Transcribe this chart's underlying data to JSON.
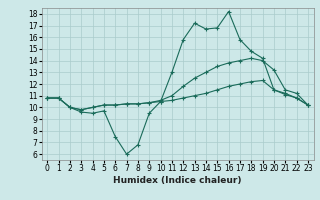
{
  "title": "",
  "xlabel": "Humidex (Indice chaleur)",
  "bg_color": "#cde8e8",
  "line_color": "#1a6b5a",
  "grid_color": "#aacccc",
  "xlim": [
    -0.5,
    23.5
  ],
  "ylim": [
    5.5,
    18.5
  ],
  "xticks": [
    0,
    1,
    2,
    3,
    4,
    5,
    6,
    7,
    8,
    9,
    10,
    11,
    12,
    13,
    14,
    15,
    16,
    17,
    18,
    19,
    20,
    21,
    22,
    23
  ],
  "yticks": [
    6,
    7,
    8,
    9,
    10,
    11,
    12,
    13,
    14,
    15,
    16,
    17,
    18
  ],
  "line1_x": [
    0,
    1,
    2,
    3,
    4,
    5,
    6,
    7,
    8,
    9,
    10,
    11,
    12,
    13,
    14,
    15,
    16,
    17,
    18,
    19,
    20,
    21,
    22,
    23
  ],
  "line1_y": [
    10.8,
    10.8,
    10.0,
    9.6,
    9.5,
    9.7,
    7.5,
    6.0,
    6.8,
    9.5,
    10.5,
    13.0,
    15.8,
    17.2,
    16.7,
    16.8,
    18.2,
    15.8,
    14.8,
    14.2,
    11.5,
    11.2,
    10.8,
    10.2
  ],
  "line2_x": [
    0,
    1,
    2,
    3,
    4,
    5,
    6,
    7,
    8,
    9,
    10,
    11,
    12,
    13,
    14,
    15,
    16,
    17,
    18,
    19,
    20,
    21,
    22,
    23
  ],
  "line2_y": [
    10.8,
    10.8,
    10.0,
    9.8,
    10.0,
    10.2,
    10.2,
    10.3,
    10.3,
    10.4,
    10.6,
    11.0,
    11.8,
    12.5,
    13.0,
    13.5,
    13.8,
    14.0,
    14.2,
    14.0,
    13.2,
    11.5,
    11.2,
    10.2
  ],
  "line3_x": [
    0,
    1,
    2,
    3,
    4,
    5,
    6,
    7,
    8,
    9,
    10,
    11,
    12,
    13,
    14,
    15,
    16,
    17,
    18,
    19,
    20,
    21,
    22,
    23
  ],
  "line3_y": [
    10.8,
    10.8,
    10.0,
    9.8,
    10.0,
    10.2,
    10.2,
    10.3,
    10.3,
    10.4,
    10.5,
    10.6,
    10.8,
    11.0,
    11.2,
    11.5,
    11.8,
    12.0,
    12.2,
    12.3,
    11.5,
    11.1,
    10.8,
    10.2
  ],
  "marker": "+",
  "tick_fontsize": 5.5,
  "xlabel_fontsize": 6.5
}
